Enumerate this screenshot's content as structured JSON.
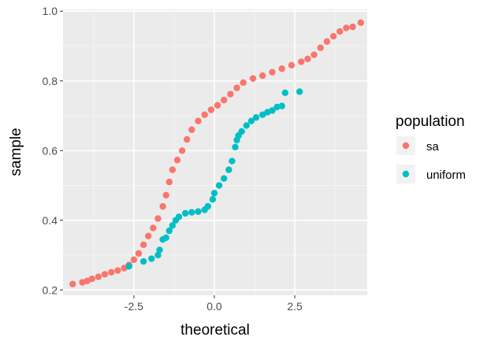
{
  "chart_data": {
    "type": "scatter",
    "title": "",
    "xlabel": "theoretical",
    "ylabel": "sample",
    "xlim": [
      -4.7,
      4.75
    ],
    "ylim": [
      0.185,
      1.005
    ],
    "x_ticks": [
      -2.5,
      0.0,
      2.5
    ],
    "x_tick_labels": [
      "-2.5",
      "0.0",
      "2.5"
    ],
    "y_ticks": [
      0.2,
      0.4,
      0.6,
      0.8,
      1.0
    ],
    "y_tick_labels": [
      "0.2",
      "0.4",
      "0.6",
      "0.8",
      "1.0"
    ],
    "grid": true,
    "legend": {
      "title": "population",
      "position": "right"
    },
    "series": [
      {
        "name": "sa",
        "color": "#F8766D",
        "points": [
          [
            -4.4,
            0.217
          ],
          [
            -4.1,
            0.222
          ],
          [
            -3.95,
            0.226
          ],
          [
            -3.8,
            0.232
          ],
          [
            -3.6,
            0.238
          ],
          [
            -3.4,
            0.245
          ],
          [
            -3.2,
            0.251
          ],
          [
            -3.0,
            0.256
          ],
          [
            -2.8,
            0.263
          ],
          [
            -2.65,
            0.272
          ],
          [
            -2.5,
            0.287
          ],
          [
            -2.35,
            0.305
          ],
          [
            -2.2,
            0.33
          ],
          [
            -2.05,
            0.355
          ],
          [
            -1.9,
            0.378
          ],
          [
            -1.75,
            0.405
          ],
          [
            -1.6,
            0.44
          ],
          [
            -1.5,
            0.472
          ],
          [
            -1.4,
            0.51
          ],
          [
            -1.3,
            0.545
          ],
          [
            -1.15,
            0.573
          ],
          [
            -1.0,
            0.6
          ],
          [
            -0.85,
            0.632
          ],
          [
            -0.7,
            0.66
          ],
          [
            -0.5,
            0.685
          ],
          [
            -0.3,
            0.703
          ],
          [
            -0.1,
            0.717
          ],
          [
            0.1,
            0.73
          ],
          [
            0.3,
            0.745
          ],
          [
            0.5,
            0.762
          ],
          [
            0.7,
            0.78
          ],
          [
            0.9,
            0.795
          ],
          [
            1.2,
            0.807
          ],
          [
            1.5,
            0.815
          ],
          [
            1.8,
            0.825
          ],
          [
            2.1,
            0.835
          ],
          [
            2.4,
            0.845
          ],
          [
            2.7,
            0.855
          ],
          [
            2.9,
            0.863
          ],
          [
            3.1,
            0.875
          ],
          [
            3.3,
            0.895
          ],
          [
            3.5,
            0.913
          ],
          [
            3.7,
            0.928
          ],
          [
            3.9,
            0.942
          ],
          [
            4.1,
            0.952
          ],
          [
            4.3,
            0.955
          ],
          [
            4.55,
            0.967
          ]
        ]
      },
      {
        "name": "uniform",
        "color": "#00BFC4",
        "points": [
          [
            -2.65,
            0.268
          ],
          [
            -2.2,
            0.282
          ],
          [
            -1.95,
            0.29
          ],
          [
            -1.75,
            0.3
          ],
          [
            -1.7,
            0.315
          ],
          [
            -1.6,
            0.345
          ],
          [
            -1.5,
            0.35
          ],
          [
            -1.4,
            0.37
          ],
          [
            -1.3,
            0.385
          ],
          [
            -1.2,
            0.4
          ],
          [
            -1.1,
            0.41
          ],
          [
            -0.9,
            0.42
          ],
          [
            -0.7,
            0.423
          ],
          [
            -0.5,
            0.425
          ],
          [
            -0.3,
            0.43
          ],
          [
            -0.2,
            0.44
          ],
          [
            -0.05,
            0.46
          ],
          [
            0.0,
            0.478
          ],
          [
            0.15,
            0.5
          ],
          [
            0.3,
            0.52
          ],
          [
            0.45,
            0.545
          ],
          [
            0.55,
            0.57
          ],
          [
            0.65,
            0.61
          ],
          [
            0.7,
            0.63
          ],
          [
            0.75,
            0.643
          ],
          [
            0.85,
            0.655
          ],
          [
            1.0,
            0.672
          ],
          [
            1.15,
            0.685
          ],
          [
            1.3,
            0.695
          ],
          [
            1.5,
            0.703
          ],
          [
            1.65,
            0.71
          ],
          [
            1.8,
            0.715
          ],
          [
            1.95,
            0.725
          ],
          [
            2.1,
            0.728
          ],
          [
            2.2,
            0.766
          ],
          [
            2.65,
            0.769
          ]
        ]
      }
    ]
  }
}
